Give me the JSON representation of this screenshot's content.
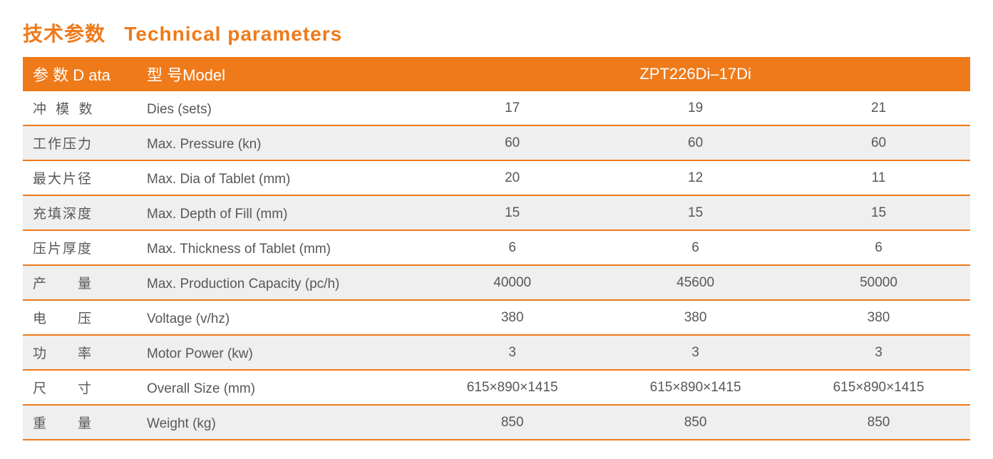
{
  "colors": {
    "orange": "#ef7a1a",
    "title_color": "#ef7a1a",
    "header_bg": "#ef7a1a",
    "row_border": "#ef7a1a",
    "text_color": "#595757",
    "row_alt_bg": "#efeff0",
    "row_bg": "#ffffff"
  },
  "title": {
    "cn": "技术参数",
    "en": "Technical parameters"
  },
  "header": {
    "data_label": "参 数 D ata",
    "model_label": "型 号Model",
    "model_value": "ZPT226Di–17Di"
  },
  "rows": [
    {
      "cn": "冲 模 数",
      "cn_style": "tight",
      "en": "Dies (sets)",
      "v": [
        "17",
        "19",
        "21"
      ]
    },
    {
      "cn": "工作压力",
      "cn_style": "",
      "en": "Max. Pressure (kn)",
      "v": [
        "60",
        "60",
        "60"
      ]
    },
    {
      "cn": "最大片径",
      "cn_style": "",
      "en": "Max. Dia of Tablet (mm)",
      "v": [
        "20",
        "12",
        "11"
      ]
    },
    {
      "cn": "充填深度",
      "cn_style": "",
      "en": "Max. Depth of Fill (mm)",
      "v": [
        "15",
        "15",
        "15"
      ]
    },
    {
      "cn": "压片厚度",
      "cn_style": "",
      "en": "Max. Thickness of Tablet (mm)",
      "v": [
        "6",
        "6",
        "6"
      ]
    },
    {
      "cn": "产　　量",
      "cn_style": "",
      "en": "Max. Production Capacity (pc/h)",
      "v": [
        "40000",
        "45600",
        "50000"
      ]
    },
    {
      "cn": "电　　压",
      "cn_style": "",
      "en": "Voltage (v/hz)",
      "v": [
        "380",
        "380",
        "380"
      ]
    },
    {
      "cn": "功　　率",
      "cn_style": "",
      "en": "Motor Power (kw)",
      "v": [
        "3",
        "3",
        "3"
      ]
    },
    {
      "cn": "尺　　寸",
      "cn_style": "",
      "en": "Overall Size (mm)",
      "v": [
        "615×890×1415",
        "615×890×1415",
        "615×890×1415"
      ]
    },
    {
      "cn": "重　　量",
      "cn_style": "",
      "en": "Weight (kg)",
      "v": [
        "850",
        "850",
        "850"
      ]
    }
  ]
}
